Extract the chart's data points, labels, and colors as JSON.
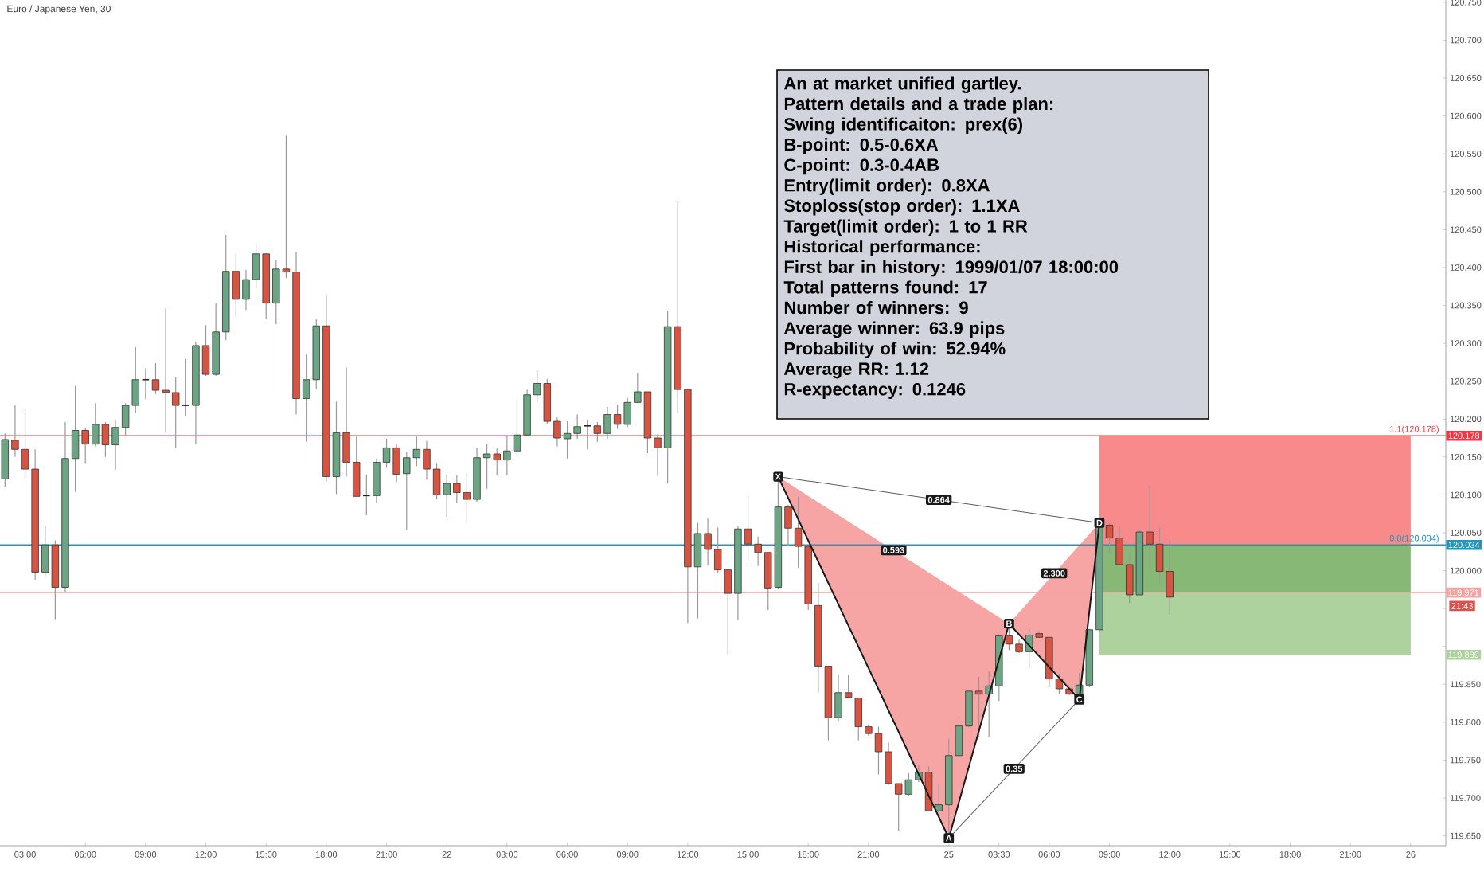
{
  "chart_data": {
    "type": "candlestick",
    "title": "Euro / Japanese Yen, 30",
    "categories": [
      null,
      null,
      "03:00",
      null,
      null,
      null,
      null,
      null,
      "06:00",
      null,
      null,
      null,
      null,
      null,
      "09:00",
      null,
      null,
      null,
      null,
      null,
      "12:00",
      null,
      null,
      null,
      null,
      null,
      "15:00",
      null,
      null,
      null,
      null,
      null,
      "18:00",
      null,
      null,
      null,
      null,
      null,
      "21:00",
      null,
      null,
      null,
      null,
      null,
      "22",
      null,
      null,
      null,
      null,
      null,
      "03:00",
      null,
      null,
      null,
      null,
      null,
      "06:00",
      null,
      null,
      null,
      null,
      null,
      "09:00",
      null,
      null,
      null,
      null,
      null,
      "12:00",
      null,
      null,
      null,
      null,
      null,
      "15:00",
      null,
      null,
      null,
      null,
      null,
      "18:00",
      null,
      null,
      null,
      null,
      null,
      "21:00",
      null,
      null,
      null,
      null,
      null,
      null,
      null,
      "25",
      null,
      null,
      null,
      null,
      "03:30",
      null,
      null,
      null,
      null,
      "06:00",
      null,
      null,
      null,
      null,
      null,
      "09:00",
      null,
      null,
      null,
      null,
      null,
      "12:00",
      null,
      null,
      null,
      null,
      null,
      "15:00",
      null,
      null,
      null,
      null,
      null,
      "18:00",
      null,
      null,
      null,
      null,
      null,
      "21:00",
      null,
      null,
      null,
      null,
      null,
      "26",
      null,
      null,
      null
    ],
    "ohlc": [
      [
        120.121,
        120.181,
        120.111,
        120.173
      ],
      [
        120.172,
        120.218,
        120.15,
        120.16
      ],
      [
        120.16,
        120.213,
        120.122,
        120.134
      ],
      [
        120.134,
        120.16,
        119.988,
        119.998
      ],
      [
        119.998,
        120.058,
        119.993,
        120.034
      ],
      [
        120.034,
        120.04,
        119.936,
        119.978
      ],
      [
        119.978,
        120.196,
        119.972,
        120.148
      ],
      [
        120.148,
        120.244,
        120.104,
        120.185
      ],
      [
        120.185,
        120.189,
        120.141,
        120.167
      ],
      [
        120.167,
        120.221,
        120.164,
        120.193
      ],
      [
        120.193,
        120.196,
        120.15,
        120.166
      ],
      [
        120.166,
        120.198,
        120.133,
        120.189
      ],
      [
        120.189,
        120.221,
        120.177,
        120.218
      ],
      [
        120.218,
        120.295,
        120.208,
        120.252
      ],
      [
        120.252,
        120.267,
        120.226,
        120.252
      ],
      [
        120.252,
        120.274,
        120.233,
        120.238
      ],
      [
        120.238,
        120.346,
        120.182,
        120.235
      ],
      [
        120.235,
        120.255,
        120.162,
        120.218
      ],
      [
        120.218,
        120.279,
        120.204,
        120.218
      ],
      [
        120.218,
        120.302,
        120.167,
        120.297
      ],
      [
        120.297,
        120.324,
        120.257,
        120.259
      ],
      [
        120.259,
        120.353,
        120.257,
        120.315
      ],
      [
        120.315,
        120.443,
        120.304,
        120.395
      ],
      [
        120.395,
        120.418,
        120.335,
        120.358
      ],
      [
        120.358,
        120.397,
        120.344,
        120.384
      ],
      [
        120.384,
        120.429,
        120.372,
        120.418
      ],
      [
        120.418,
        120.418,
        120.332,
        120.353
      ],
      [
        120.353,
        120.41,
        120.325,
        120.398
      ],
      [
        120.398,
        120.574,
        120.386,
        120.394
      ],
      [
        120.394,
        120.42,
        120.206,
        120.227
      ],
      [
        120.227,
        120.285,
        120.17,
        120.252
      ],
      [
        120.252,
        120.332,
        120.24,
        120.323
      ],
      [
        120.323,
        120.363,
        120.118,
        120.124
      ],
      [
        120.124,
        120.223,
        120.101,
        120.182
      ],
      [
        120.182,
        120.268,
        120.124,
        120.143
      ],
      [
        120.143,
        120.177,
        120.098,
        120.098
      ],
      [
        120.099,
        120.127,
        120.073,
        120.099
      ],
      [
        120.099,
        120.148,
        120.09,
        120.143
      ],
      [
        120.143,
        120.174,
        120.136,
        120.162
      ],
      [
        120.162,
        120.167,
        120.117,
        120.127
      ],
      [
        120.128,
        120.156,
        120.054,
        120.149
      ],
      [
        120.149,
        120.177,
        120.138,
        120.16
      ],
      [
        120.16,
        120.171,
        120.12,
        120.134
      ],
      [
        120.134,
        120.141,
        120.094,
        120.1
      ],
      [
        120.1,
        120.127,
        120.071,
        120.115
      ],
      [
        120.115,
        120.126,
        120.09,
        120.103
      ],
      [
        120.103,
        120.129,
        120.063,
        120.094
      ],
      [
        120.094,
        120.162,
        120.091,
        120.149
      ],
      [
        120.149,
        120.167,
        120.108,
        120.154
      ],
      [
        120.154,
        120.162,
        120.126,
        120.146
      ],
      [
        120.146,
        120.178,
        120.126,
        120.158
      ],
      [
        120.158,
        120.225,
        120.15,
        120.179
      ],
      [
        120.179,
        120.239,
        120.179,
        120.232
      ],
      [
        120.232,
        120.265,
        120.222,
        120.247
      ],
      [
        120.247,
        120.253,
        120.194,
        120.197
      ],
      [
        120.197,
        120.202,
        120.164,
        120.175
      ],
      [
        120.174,
        120.197,
        120.148,
        120.181
      ],
      [
        120.181,
        120.206,
        120.174,
        120.19
      ],
      [
        120.191,
        120.199,
        120.16,
        120.191
      ],
      [
        120.191,
        120.196,
        120.17,
        120.181
      ],
      [
        120.181,
        120.216,
        120.174,
        120.206
      ],
      [
        120.206,
        120.219,
        120.187,
        120.193
      ],
      [
        120.193,
        120.228,
        120.189,
        120.222
      ],
      [
        120.222,
        120.261,
        120.221,
        120.236
      ],
      [
        120.236,
        120.236,
        120.155,
        120.175
      ],
      [
        120.175,
        120.18,
        120.125,
        120.162
      ],
      [
        120.162,
        120.342,
        120.115,
        120.322
      ],
      [
        120.322,
        120.487,
        120.209,
        120.239
      ],
      [
        120.239,
        120.239,
        119.931,
        120.005
      ],
      [
        120.005,
        120.063,
        119.937,
        120.049
      ],
      [
        120.049,
        120.069,
        120.007,
        120.028
      ],
      [
        120.028,
        120.057,
        119.996,
        120.001
      ],
      [
        120.001,
        120.001,
        119.888,
        119.97
      ],
      [
        119.97,
        120.059,
        119.935,
        120.055
      ],
      [
        120.055,
        120.099,
        120.012,
        120.035
      ],
      [
        120.035,
        120.045,
        120.006,
        120.024
      ],
      [
        120.024,
        120.024,
        119.948,
        119.977
      ],
      [
        119.978,
        120.124,
        119.976,
        120.084
      ],
      [
        120.084,
        120.087,
        120.032,
        120.056
      ],
      [
        120.056,
        120.098,
        120.004,
        120.032
      ],
      [
        120.032,
        120.032,
        119.948,
        119.956
      ],
      [
        119.954,
        119.984,
        119.839,
        119.874
      ],
      [
        119.874,
        119.874,
        119.776,
        119.806
      ],
      [
        119.806,
        119.862,
        119.802,
        119.839
      ],
      [
        119.839,
        119.862,
        119.832,
        119.833
      ],
      [
        119.832,
        119.832,
        119.776,
        119.794
      ],
      [
        119.794,
        119.797,
        119.782,
        119.785
      ],
      [
        119.785,
        119.794,
        119.731,
        119.761
      ],
      [
        119.761,
        119.773,
        119.717,
        119.719
      ],
      [
        119.719,
        119.719,
        119.657,
        119.705
      ],
      [
        119.705,
        119.733,
        119.703,
        119.724
      ],
      [
        119.724,
        119.743,
        119.721,
        119.734
      ],
      [
        119.734,
        119.742,
        119.683,
        119.683
      ],
      [
        119.683,
        119.719,
        119.681,
        119.691
      ],
      [
        119.691,
        119.778,
        119.647,
        119.756
      ],
      [
        119.756,
        119.808,
        119.753,
        119.795
      ],
      [
        119.795,
        119.841,
        119.793,
        119.841
      ],
      [
        119.841,
        119.86,
        119.781,
        119.837
      ],
      [
        119.837,
        119.867,
        119.781,
        119.848
      ],
      [
        119.848,
        119.916,
        119.828,
        119.914
      ],
      [
        119.914,
        119.93,
        119.895,
        119.903
      ],
      [
        119.903,
        119.909,
        119.891,
        119.893
      ],
      [
        119.893,
        119.926,
        119.871,
        119.915
      ],
      [
        119.917,
        119.92,
        119.911,
        119.912
      ],
      [
        119.912,
        119.912,
        119.846,
        119.857
      ],
      [
        119.857,
        119.864,
        119.837,
        119.844
      ],
      [
        119.844,
        119.846,
        119.836,
        119.837
      ],
      [
        119.837,
        119.865,
        119.83,
        119.849
      ],
      [
        119.849,
        119.923,
        119.846,
        119.922
      ],
      [
        119.922,
        120.063,
        119.919,
        120.061
      ],
      [
        120.06,
        120.063,
        120.023,
        120.043
      ],
      [
        120.043,
        120.058,
        120.007,
        120.008
      ],
      [
        120.008,
        120.023,
        119.957,
        119.968
      ],
      [
        119.968,
        120.054,
        119.968,
        120.051
      ],
      [
        120.051,
        120.112,
        120.004,
        120.035
      ],
      [
        120.035,
        120.057,
        119.983,
        119.999
      ],
      [
        119.999,
        120.04,
        119.942,
        119.965
      ],
      null,
      null,
      null,
      null,
      null,
      null,
      null,
      null,
      null,
      null,
      null,
      null,
      null,
      null,
      null,
      null,
      null,
      null,
      null,
      null,
      null,
      null,
      null,
      null,
      null,
      null,
      null
    ],
    "series": [
      {
        "type": "line",
        "color": "#191919",
        "marker": "square",
        "values": [
          null,
          null,
          null,
          null,
          null,
          null,
          null,
          null,
          null,
          null,
          null,
          null,
          null,
          null,
          null,
          null,
          null,
          null,
          null,
          null,
          null,
          null,
          null,
          null,
          null,
          null,
          null,
          null,
          null,
          null,
          null,
          null,
          null,
          null,
          null,
          null,
          null,
          null,
          null,
          null,
          null,
          null,
          null,
          null,
          null,
          null,
          null,
          null,
          null,
          null,
          null,
          null,
          null,
          null,
          null,
          null,
          null,
          null,
          null,
          null,
          null,
          null,
          null,
          null,
          null,
          null,
          null,
          null,
          null,
          null,
          null,
          null,
          null,
          null,
          null,
          null,
          null,
          120.124,
          null,
          null,
          null,
          null,
          null,
          null,
          null,
          null,
          null,
          null,
          null,
          null,
          null,
          null,
          null,
          null,
          119.647,
          null,
          null,
          null,
          null,
          null,
          119.93,
          null,
          null,
          null,
          null,
          null,
          null,
          119.83,
          null,
          120.063,
          null,
          null,
          null,
          null,
          null,
          null,
          null,
          null,
          null,
          null,
          null,
          null,
          null,
          null,
          null,
          null,
          null,
          null,
          null,
          null,
          null,
          null,
          null,
          null,
          null,
          null,
          null,
          null,
          null,
          null,
          null,
          null,
          null,
          null
        ],
        "value_labels": [
          null,
          null,
          null,
          null,
          null,
          null,
          null,
          null,
          null,
          null,
          null,
          null,
          null,
          null,
          null,
          null,
          null,
          null,
          null,
          null,
          null,
          null,
          null,
          null,
          null,
          null,
          null,
          null,
          null,
          null,
          null,
          null,
          null,
          null,
          null,
          null,
          null,
          null,
          null,
          null,
          null,
          null,
          null,
          null,
          null,
          null,
          null,
          null,
          null,
          null,
          null,
          null,
          null,
          null,
          null,
          null,
          null,
          null,
          null,
          null,
          null,
          null,
          null,
          null,
          null,
          null,
          null,
          null,
          null,
          null,
          null,
          null,
          null,
          null,
          null,
          null,
          null,
          "X",
          null,
          null,
          null,
          null,
          null,
          null,
          null,
          null,
          null,
          null,
          null,
          null,
          null,
          null,
          null,
          null,
          "A",
          null,
          null,
          null,
          null,
          null,
          "B",
          null,
          null,
          null,
          null,
          null,
          null,
          "C",
          null,
          "D",
          null,
          null,
          null,
          null,
          null,
          null,
          null,
          null,
          null,
          null,
          null,
          null,
          null,
          null,
          null,
          null,
          null,
          null,
          null,
          null,
          null,
          null,
          null,
          null,
          null,
          null,
          null,
          null,
          null,
          null,
          null,
          null,
          null,
          null
        ]
      }
    ],
    "ylim": [
      119.637,
      120.753
    ],
    "yticks": [
      {
        "value": 119.65,
        "label": "119.650"
      },
      {
        "value": 119.7,
        "label": "119.700"
      },
      {
        "value": 119.75,
        "label": "119.750"
      },
      {
        "value": 119.8,
        "label": "119.800"
      },
      {
        "value": 119.85,
        "label": "119.850"
      },
      119.889,
      {
        "value": 119.9,
        "label": null
      },
      {
        "value": 119.95,
        "label": null
      },
      119.971,
      {
        "value": 120.0,
        "label": "120.000"
      },
      120.034,
      {
        "value": 120.05,
        "label": "120.050"
      },
      {
        "value": 120.1,
        "label": "120.100"
      },
      {
        "value": 120.15,
        "label": "120.150"
      },
      120.178,
      {
        "value": 120.2,
        "label": "120.200"
      },
      {
        "value": 120.25,
        "label": "120.250"
      },
      {
        "value": 120.3,
        "label": "120.300"
      },
      {
        "value": 120.35,
        "label": "120.350"
      },
      {
        "value": 120.4,
        "label": "120.400"
      },
      {
        "value": 120.45,
        "label": "120.450"
      },
      {
        "value": 120.5,
        "label": "120.500"
      },
      {
        "value": 120.55,
        "label": "120.550"
      },
      {
        "value": 120.6,
        "label": "120.600"
      },
      {
        "value": 120.65,
        "label": "120.650"
      },
      {
        "value": 120.7,
        "label": "120.700"
      },
      {
        "value": 120.75,
        "label": "120.750"
      }
    ],
    "ref_lines": [
      {
        "axis": "y",
        "value": 120.178,
        "label": "1.1(120.178)",
        "color": "#f23645"
      },
      {
        "axis": "y",
        "value": 120.034,
        "label": "0.8(120.034)",
        "color": "#2196b8"
      },
      {
        "axis": "y",
        "value": 119.971,
        "color": "#f5a3a3"
      }
    ],
    "bands": [
      {
        "axis": "y",
        "from": 120.034,
        "to": 120.178,
        "color": "#f88a8c"
      },
      {
        "axis": "y",
        "from": 119.971,
        "to": 120.034,
        "color": "#87b876"
      },
      {
        "axis": "y",
        "from": 119.889,
        "to": 119.971,
        "color": "#add29e"
      }
    ],
    "annotations": [
      "An at market unified gartley.",
      "Pattern details and a trade plan:",
      "Swing identificaiton: prex(6)",
      "B-point: 0.5-0.6XA",
      "C-point: 0.3-0.4AB",
      "Entry(limit order): 0.8XA",
      "Stoploss(stop order): 1.1XA",
      "Target(limit order): 1 to 1 RR",
      "Historical performance:",
      "First bar in history: 1999/01/07 18:00:00",
      "Total patterns found: 17",
      "Number of winners: 9",
      "Average winner: 63.9 pips",
      "Probability of win: 52.94%",
      "Average RR: 1.12",
      "R-expectancy: 0.1246",
      "0.593",
      "0.864",
      "2.300",
      "0.35",
      "21:43"
    ]
  }
}
